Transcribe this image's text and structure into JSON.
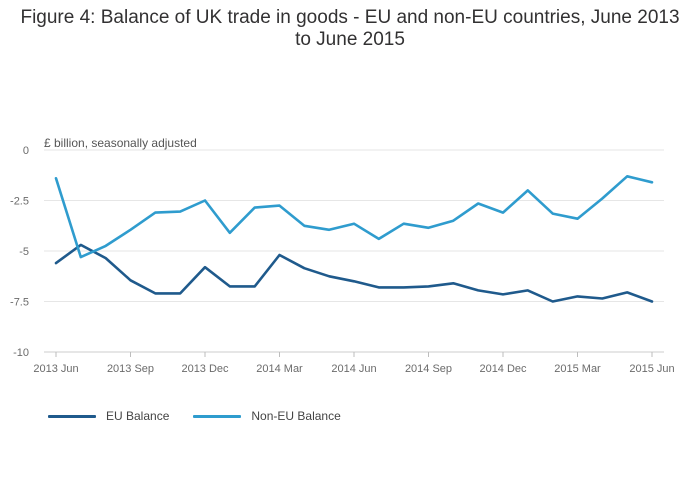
{
  "chart_data": {
    "type": "line",
    "title": "Figure 4: Balance of UK trade in goods - EU and non-EU countries, June 2013 to June 2015",
    "subtitle": "£ billion, seasonally adjusted",
    "xlabel": "",
    "ylabel": "£ billion, seasonally adjusted",
    "ylim": [
      -10,
      0
    ],
    "yticks": [
      0,
      -2.5,
      -5,
      -7.5,
      -10
    ],
    "ytick_labels": [
      "0",
      "-2.5",
      "-5",
      "-7.5",
      "-10"
    ],
    "categories": [
      "2013 Jun",
      "2013 Jul",
      "2013 Aug",
      "2013 Sep",
      "2013 Oct",
      "2013 Nov",
      "2013 Dec",
      "2014 Jan",
      "2014 Feb",
      "2014 Mar",
      "2014 Apr",
      "2014 May",
      "2014 Jun",
      "2014 Jul",
      "2014 Aug",
      "2014 Sep",
      "2014 Oct",
      "2014 Nov",
      "2014 Dec",
      "2015 Jan",
      "2015 Feb",
      "2015 Mar",
      "2015 Apr",
      "2015 May",
      "2015 Jun"
    ],
    "xtick_labels": [
      {
        "index": 0,
        "label": "2013 Jun"
      },
      {
        "index": 3,
        "label": "2013 Sep"
      },
      {
        "index": 6,
        "label": "2013 Dec"
      },
      {
        "index": 9,
        "label": "2014 Mar"
      },
      {
        "index": 12,
        "label": "2014 Jun"
      },
      {
        "index": 15,
        "label": "2014 Sep"
      },
      {
        "index": 18,
        "label": "2014 Dec"
      },
      {
        "index": 21,
        "label": "2015 Mar"
      },
      {
        "index": 24,
        "label": "2015 Jun"
      }
    ],
    "series": [
      {
        "name": "EU Balance",
        "color": "#1f5a8c",
        "values": [
          -5.6,
          -4.7,
          -5.35,
          -6.45,
          -7.1,
          -7.1,
          -5.8,
          -6.75,
          -6.75,
          -5.2,
          -5.85,
          -6.25,
          -6.5,
          -6.8,
          -6.8,
          -6.75,
          -6.6,
          -6.95,
          -7.15,
          -6.95,
          -7.5,
          -7.25,
          -7.35,
          -7.05,
          -7.5
        ]
      },
      {
        "name": "Non-EU Balance",
        "color": "#2f9cce",
        "values": [
          -1.4,
          -5.3,
          -4.75,
          -3.95,
          -3.1,
          -3.05,
          -2.5,
          -4.1,
          -2.85,
          -2.75,
          -3.75,
          -3.95,
          -3.65,
          -4.4,
          -3.65,
          -3.85,
          -3.5,
          -2.65,
          -3.1,
          -2.0,
          -3.15,
          -3.4,
          -2.4,
          -1.3,
          -1.6
        ]
      }
    ],
    "grid": true,
    "legend": "bottom-left"
  }
}
